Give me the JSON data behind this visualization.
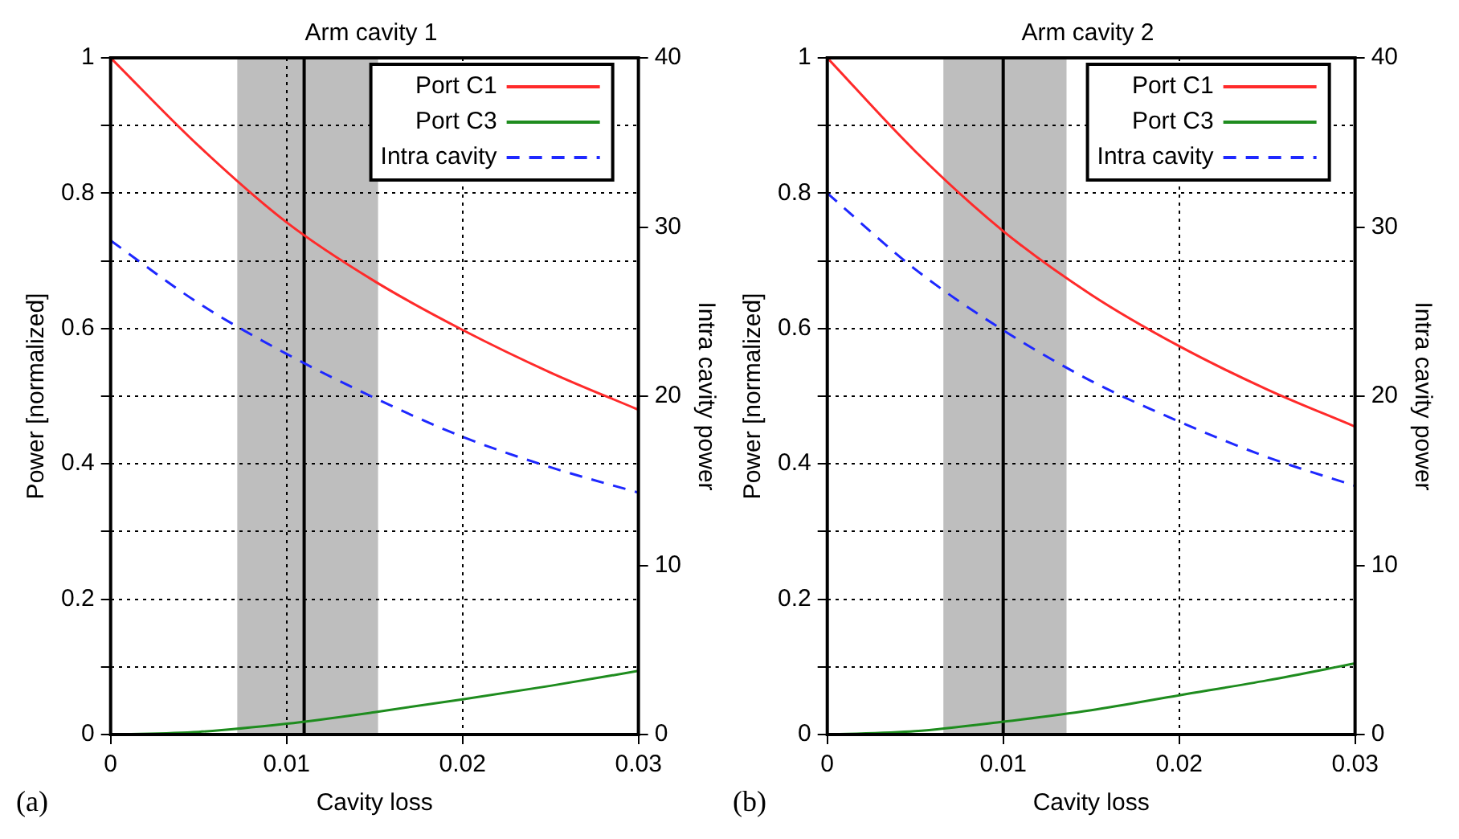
{
  "chart_data": [
    {
      "type": "line",
      "title": "Arm cavity 1",
      "xlabel": "Cavity loss",
      "ylabel": "Power [normalized]",
      "y2label": "Intra cavity power",
      "annotations": [
        "(a)"
      ],
      "xlim": [
        0,
        0.03
      ],
      "xticks": [
        0,
        0.01,
        0.02,
        0.03
      ],
      "ylim": [
        0,
        1
      ],
      "yticks": [
        0,
        {
          "value": 0.1,
          "label": null
        },
        0.2,
        {
          "value": 0.3,
          "label": null
        },
        0.4,
        {
          "value": 0.5,
          "label": null
        },
        0.6,
        {
          "value": 0.7,
          "label": null
        },
        0.8,
        {
          "value": 0.9,
          "label": null
        },
        1
      ],
      "y2lim": [
        0,
        40
      ],
      "y2ticks": [
        0,
        10,
        20,
        30,
        40
      ],
      "grid": true,
      "legend": "top right",
      "marker": "none",
      "series": [
        {
          "name": "Port C1",
          "color": "#ff2a2a",
          "line_style": "solid",
          "x": [
            0,
            0.005,
            0.01,
            0.015,
            0.02,
            0.025,
            0.03
          ],
          "values": [
            1,
            0.87,
            0.757,
            0.67,
            0.598,
            0.535,
            0.48
          ]
        },
        {
          "name": "Port C3",
          "color": "#1e8c1e",
          "line_style": "solid",
          "x": [
            0,
            0.005,
            0.01,
            0.015,
            0.02,
            0.025,
            0.03
          ],
          "values": [
            0,
            0.004,
            0.016,
            0.033,
            0.052,
            0.072,
            0.094
          ]
        },
        {
          "name": "Intra cavity",
          "color": "#1e28ff",
          "line_style": "dashed",
          "axis": "y2",
          "x": [
            0,
            0.005,
            0.01,
            0.015,
            0.02,
            0.025,
            0.03
          ],
          "values": [
            29.2,
            25.5,
            22.5,
            19.9,
            17.6,
            15.8,
            14.3
          ]
        }
      ],
      "ref_lines": [
        {
          "axis": "x",
          "value": 0.011,
          "color": "#000000"
        }
      ],
      "bands": [
        {
          "axis": "x",
          "from": 0.0072,
          "to": 0.0152,
          "color": "#bebebe"
        }
      ]
    },
    {
      "type": "line",
      "title": "Arm cavity 2",
      "xlabel": "Cavity loss",
      "ylabel": "Power [normalized]",
      "y2label": "Intra cavity power",
      "annotations": [
        "(b)"
      ],
      "xlim": [
        0,
        0.03
      ],
      "xticks": [
        0,
        0.01,
        0.02,
        0.03
      ],
      "ylim": [
        0,
        1
      ],
      "yticks": [
        0,
        {
          "value": 0.1,
          "label": null
        },
        0.2,
        {
          "value": 0.3,
          "label": null
        },
        0.4,
        {
          "value": 0.5,
          "label": null
        },
        0.6,
        {
          "value": 0.7,
          "label": null
        },
        0.8,
        {
          "value": 0.9,
          "label": null
        },
        1
      ],
      "y2lim": [
        0,
        40
      ],
      "y2ticks": [
        0,
        10,
        20,
        30,
        40
      ],
      "grid": true,
      "legend": "top right",
      "marker": "none",
      "series": [
        {
          "name": "Port C1",
          "color": "#ff2a2a",
          "line_style": "solid",
          "x": [
            0,
            0.005,
            0.01,
            0.015,
            0.02,
            0.025,
            0.03
          ],
          "values": [
            1,
            0.862,
            0.744,
            0.65,
            0.574,
            0.51,
            0.455
          ]
        },
        {
          "name": "Port C3",
          "color": "#1e8c1e",
          "line_style": "solid",
          "x": [
            0,
            0.005,
            0.01,
            0.015,
            0.02,
            0.025,
            0.03
          ],
          "values": [
            0,
            0.005,
            0.019,
            0.036,
            0.058,
            0.08,
            0.105
          ]
        },
        {
          "name": "Intra cavity",
          "color": "#1e28ff",
          "line_style": "dashed",
          "axis": "y2",
          "x": [
            0,
            0.005,
            0.01,
            0.015,
            0.02,
            0.025,
            0.03
          ],
          "values": [
            32,
            27.5,
            23.9,
            20.9,
            18.5,
            16.4,
            14.7
          ]
        }
      ],
      "ref_lines": [
        {
          "axis": "x",
          "value": 0.01,
          "color": "#000000"
        }
      ],
      "bands": [
        {
          "axis": "x",
          "from": 0.0066,
          "to": 0.0136,
          "color": "#bebebe"
        }
      ]
    }
  ]
}
